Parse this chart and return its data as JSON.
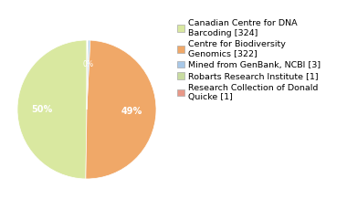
{
  "legend_labels": [
    "Canadian Centre for DNA\nBarcoding [324]",
    "Centre for Biodiversity\nGenomics [322]",
    "Mined from GenBank, NCBI [3]",
    "Robarts Research Institute [1]",
    "Research Collection of Donald\nQuicke [1]"
  ],
  "values": [
    324,
    322,
    3,
    1,
    1
  ],
  "colors": [
    "#d9e8a0",
    "#f0a868",
    "#a8c8e8",
    "#c8dca0",
    "#e89888"
  ],
  "background_color": "#ffffff",
  "font_size": 7.0,
  "legend_font_size": 6.8
}
